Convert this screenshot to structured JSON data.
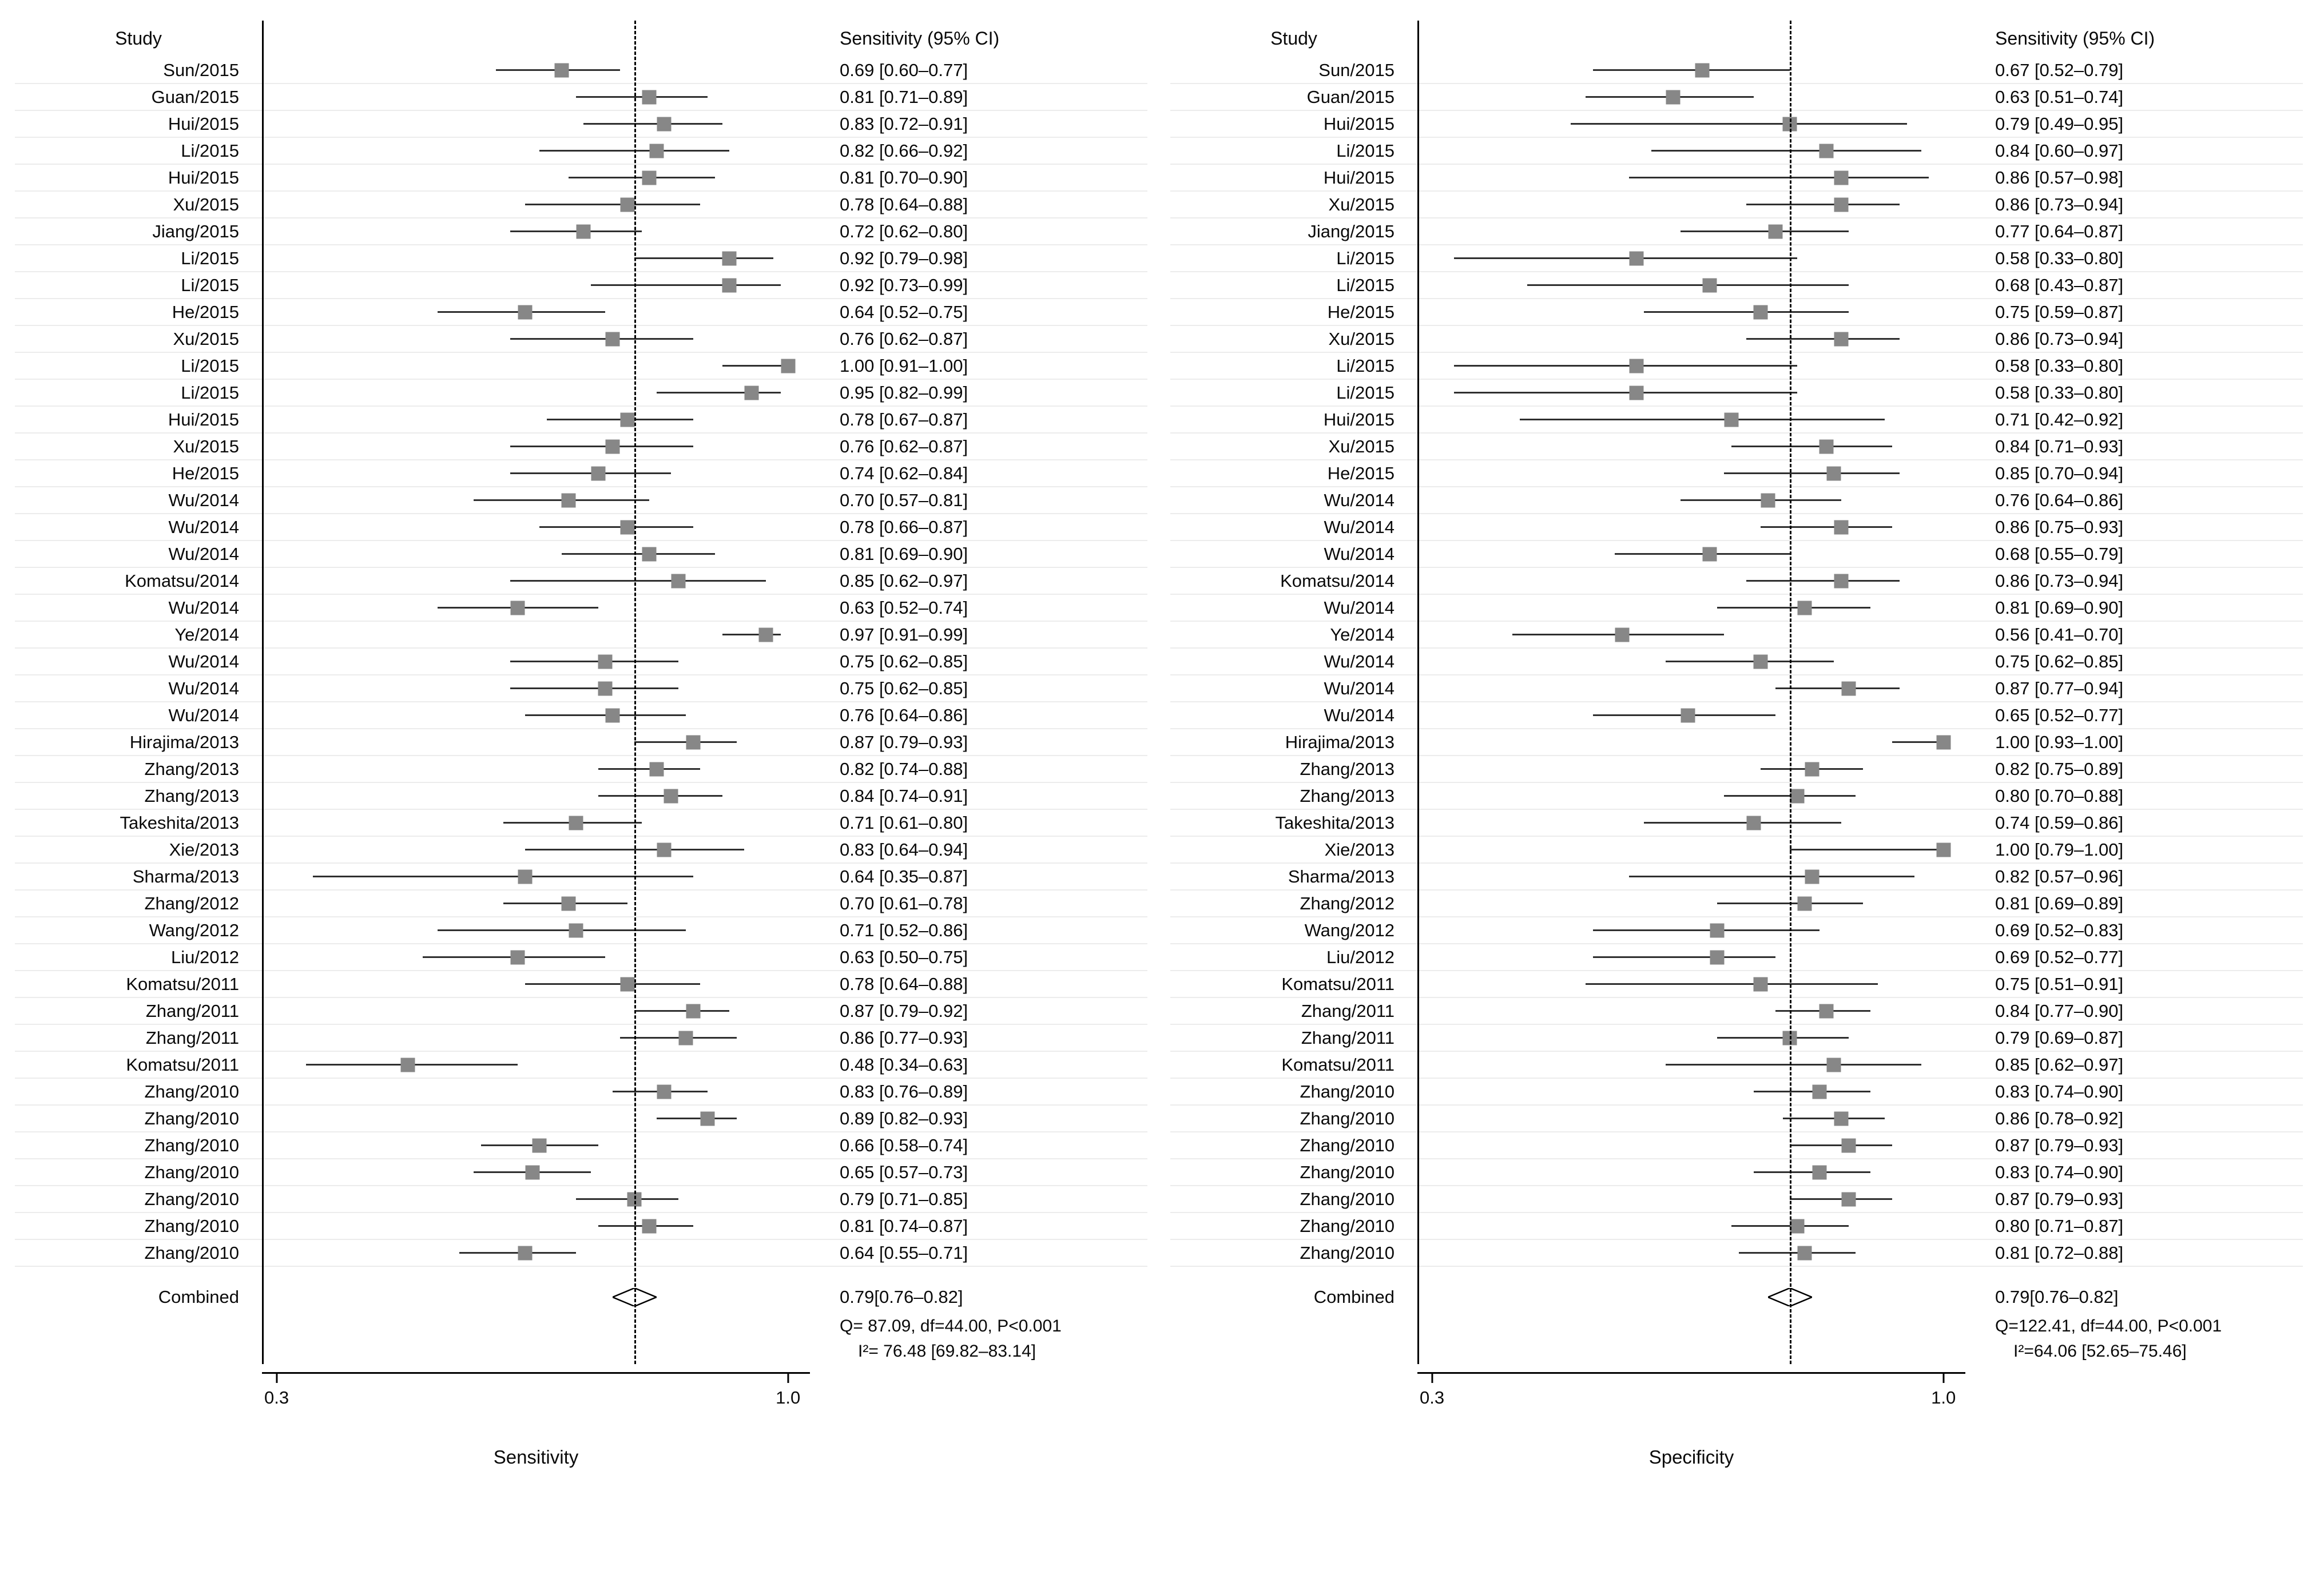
{
  "style": {
    "marker_color": "#878787",
    "ci_line_color": "#2f2f2f",
    "axis_color": "#000000",
    "background": "#ffffff"
  },
  "chart_data": [
    {
      "type": "forest",
      "col_study": "Study",
      "col_ci": "Sensitivity (95% CI)",
      "xlabel": "Sensitivity",
      "x_ticks": [
        "0.3",
        "1.0"
      ],
      "x_range": [
        0.28,
        1.03
      ],
      "grid": "light-horizontal",
      "combined": {
        "label": "Combined",
        "v": 0.79,
        "lo": 0.76,
        "hi": 0.82,
        "text": "0.79[0.76–0.82]"
      },
      "heterogeneity": [
        "Q= 87.09, df=44.00, P<0.001",
        "I²= 76.48 [69.82–83.14]"
      ],
      "rows": [
        {
          "study": "Sun/2015",
          "v": 0.69,
          "lo": 0.6,
          "hi": 0.77,
          "text": "0.69 [0.60–0.77]"
        },
        {
          "study": "Guan/2015",
          "v": 0.81,
          "lo": 0.71,
          "hi": 0.89,
          "text": "0.81 [0.71–0.89]"
        },
        {
          "study": "Hui/2015",
          "v": 0.83,
          "lo": 0.72,
          "hi": 0.91,
          "text": "0.83 [0.72–0.91]"
        },
        {
          "study": "Li/2015",
          "v": 0.82,
          "lo": 0.66,
          "hi": 0.92,
          "text": "0.82 [0.66–0.92]"
        },
        {
          "study": "Hui/2015",
          "v": 0.81,
          "lo": 0.7,
          "hi": 0.9,
          "text": "0.81 [0.70–0.90]"
        },
        {
          "study": "Xu/2015",
          "v": 0.78,
          "lo": 0.64,
          "hi": 0.88,
          "text": "0.78 [0.64–0.88]"
        },
        {
          "study": "Jiang/2015",
          "v": 0.72,
          "lo": 0.62,
          "hi": 0.8,
          "text": "0.72 [0.62–0.80]"
        },
        {
          "study": "Li/2015",
          "v": 0.92,
          "lo": 0.79,
          "hi": 0.98,
          "text": "0.92 [0.79–0.98]"
        },
        {
          "study": "Li/2015",
          "v": 0.92,
          "lo": 0.73,
          "hi": 0.99,
          "text": "0.92 [0.73–0.99]"
        },
        {
          "study": "He/2015",
          "v": 0.64,
          "lo": 0.52,
          "hi": 0.75,
          "text": "0.64 [0.52–0.75]"
        },
        {
          "study": "Xu/2015",
          "v": 0.76,
          "lo": 0.62,
          "hi": 0.87,
          "text": "0.76 [0.62–0.87]"
        },
        {
          "study": "Li/2015",
          "v": 1.0,
          "lo": 0.91,
          "hi": 1.0,
          "text": "1.00 [0.91–1.00]"
        },
        {
          "study": "Li/2015",
          "v": 0.95,
          "lo": 0.82,
          "hi": 0.99,
          "text": "0.95 [0.82–0.99]"
        },
        {
          "study": "Hui/2015",
          "v": 0.78,
          "lo": 0.67,
          "hi": 0.87,
          "text": "0.78 [0.67–0.87]"
        },
        {
          "study": "Xu/2015",
          "v": 0.76,
          "lo": 0.62,
          "hi": 0.87,
          "text": "0.76 [0.62–0.87]"
        },
        {
          "study": "He/2015",
          "v": 0.74,
          "lo": 0.62,
          "hi": 0.84,
          "text": "0.74 [0.62–0.84]"
        },
        {
          "study": "Wu/2014",
          "v": 0.7,
          "lo": 0.57,
          "hi": 0.81,
          "text": "0.70 [0.57–0.81]"
        },
        {
          "study": "Wu/2014",
          "v": 0.78,
          "lo": 0.66,
          "hi": 0.87,
          "text": "0.78 [0.66–0.87]"
        },
        {
          "study": "Wu/2014",
          "v": 0.81,
          "lo": 0.69,
          "hi": 0.9,
          "text": "0.81 [0.69–0.90]"
        },
        {
          "study": "Komatsu/2014",
          "v": 0.85,
          "lo": 0.62,
          "hi": 0.97,
          "text": "0.85 [0.62–0.97]"
        },
        {
          "study": "Wu/2014",
          "v": 0.63,
          "lo": 0.52,
          "hi": 0.74,
          "text": "0.63 [0.52–0.74]"
        },
        {
          "study": "Ye/2014",
          "v": 0.97,
          "lo": 0.91,
          "hi": 0.99,
          "text": "0.97 [0.91–0.99]"
        },
        {
          "study": "Wu/2014",
          "v": 0.75,
          "lo": 0.62,
          "hi": 0.85,
          "text": "0.75 [0.62–0.85]"
        },
        {
          "study": "Wu/2014",
          "v": 0.75,
          "lo": 0.62,
          "hi": 0.85,
          "text": "0.75 [0.62–0.85]"
        },
        {
          "study": "Wu/2014",
          "v": 0.76,
          "lo": 0.64,
          "hi": 0.86,
          "text": "0.76 [0.64–0.86]"
        },
        {
          "study": "Hirajima/2013",
          "v": 0.87,
          "lo": 0.79,
          "hi": 0.93,
          "text": "0.87 [0.79–0.93]"
        },
        {
          "study": "Zhang/2013",
          "v": 0.82,
          "lo": 0.74,
          "hi": 0.88,
          "text": "0.82 [0.74–0.88]"
        },
        {
          "study": "Zhang/2013",
          "v": 0.84,
          "lo": 0.74,
          "hi": 0.91,
          "text": "0.84 [0.74–0.91]"
        },
        {
          "study": "Takeshita/2013",
          "v": 0.71,
          "lo": 0.61,
          "hi": 0.8,
          "text": "0.71 [0.61–0.80]"
        },
        {
          "study": "Xie/2013",
          "v": 0.83,
          "lo": 0.64,
          "hi": 0.94,
          "text": "0.83 [0.64–0.94]"
        },
        {
          "study": "Sharma/2013",
          "v": 0.64,
          "lo": 0.35,
          "hi": 0.87,
          "text": "0.64 [0.35–0.87]"
        },
        {
          "study": "Zhang/2012",
          "v": 0.7,
          "lo": 0.61,
          "hi": 0.78,
          "text": "0.70 [0.61–0.78]"
        },
        {
          "study": "Wang/2012",
          "v": 0.71,
          "lo": 0.52,
          "hi": 0.86,
          "text": "0.71 [0.52–0.86]"
        },
        {
          "study": "Liu/2012",
          "v": 0.63,
          "lo": 0.5,
          "hi": 0.75,
          "text": "0.63 [0.50–0.75]"
        },
        {
          "study": "Komatsu/2011",
          "v": 0.78,
          "lo": 0.64,
          "hi": 0.88,
          "text": "0.78 [0.64–0.88]"
        },
        {
          "study": "Zhang/2011",
          "v": 0.87,
          "lo": 0.79,
          "hi": 0.92,
          "text": "0.87 [0.79–0.92]"
        },
        {
          "study": "Zhang/2011",
          "v": 0.86,
          "lo": 0.77,
          "hi": 0.93,
          "text": "0.86 [0.77–0.93]"
        },
        {
          "study": "Komatsu/2011",
          "v": 0.48,
          "lo": 0.34,
          "hi": 0.63,
          "text": "0.48 [0.34–0.63]"
        },
        {
          "study": "Zhang/2010",
          "v": 0.83,
          "lo": 0.76,
          "hi": 0.89,
          "text": "0.83 [0.76–0.89]"
        },
        {
          "study": "Zhang/2010",
          "v": 0.89,
          "lo": 0.82,
          "hi": 0.93,
          "text": "0.89 [0.82–0.93]"
        },
        {
          "study": "Zhang/2010",
          "v": 0.66,
          "lo": 0.58,
          "hi": 0.74,
          "text": "0.66 [0.58–0.74]"
        },
        {
          "study": "Zhang/2010",
          "v": 0.65,
          "lo": 0.57,
          "hi": 0.73,
          "text": "0.65 [0.57–0.73]"
        },
        {
          "study": "Zhang/2010",
          "v": 0.79,
          "lo": 0.71,
          "hi": 0.85,
          "text": "0.79 [0.71–0.85]"
        },
        {
          "study": "Zhang/2010",
          "v": 0.81,
          "lo": 0.74,
          "hi": 0.87,
          "text": "0.81 [0.74–0.87]"
        },
        {
          "study": "Zhang/2010",
          "v": 0.64,
          "lo": 0.55,
          "hi": 0.71,
          "text": "0.64 [0.55–0.71]"
        }
      ]
    },
    {
      "type": "forest",
      "col_study": "Study",
      "col_ci": "Sensitivity (95% CI)",
      "xlabel": "Specificity",
      "x_ticks": [
        "0.3",
        "1.0"
      ],
      "x_range": [
        0.28,
        1.03
      ],
      "grid": "light-horizontal",
      "combined": {
        "label": "Combined",
        "v": 0.79,
        "lo": 0.76,
        "hi": 0.82,
        "text": "0.79[0.76–0.82]"
      },
      "heterogeneity": [
        "Q=122.41, df=44.00, P<0.001",
        "I²=64.06 [52.65–75.46]"
      ],
      "rows": [
        {
          "study": "Sun/2015",
          "v": 0.67,
          "lo": 0.52,
          "hi": 0.79,
          "text": "0.67 [0.52–0.79]"
        },
        {
          "study": "Guan/2015",
          "v": 0.63,
          "lo": 0.51,
          "hi": 0.74,
          "text": "0.63 [0.51–0.74]"
        },
        {
          "study": "Hui/2015",
          "v": 0.79,
          "lo": 0.49,
          "hi": 0.95,
          "text": "0.79 [0.49–0.95]"
        },
        {
          "study": "Li/2015",
          "v": 0.84,
          "lo": 0.6,
          "hi": 0.97,
          "text": "0.84 [0.60–0.97]"
        },
        {
          "study": "Hui/2015",
          "v": 0.86,
          "lo": 0.57,
          "hi": 0.98,
          "text": "0.86 [0.57–0.98]"
        },
        {
          "study": "Xu/2015",
          "v": 0.86,
          "lo": 0.73,
          "hi": 0.94,
          "text": "0.86 [0.73–0.94]"
        },
        {
          "study": "Jiang/2015",
          "v": 0.77,
          "lo": 0.64,
          "hi": 0.87,
          "text": "0.77 [0.64–0.87]"
        },
        {
          "study": "Li/2015",
          "v": 0.58,
          "lo": 0.33,
          "hi": 0.8,
          "text": "0.58 [0.33–0.80]"
        },
        {
          "study": "Li/2015",
          "v": 0.68,
          "lo": 0.43,
          "hi": 0.87,
          "text": "0.68 [0.43–0.87]"
        },
        {
          "study": "He/2015",
          "v": 0.75,
          "lo": 0.59,
          "hi": 0.87,
          "text": "0.75 [0.59–0.87]"
        },
        {
          "study": "Xu/2015",
          "v": 0.86,
          "lo": 0.73,
          "hi": 0.94,
          "text": "0.86 [0.73–0.94]"
        },
        {
          "study": "Li/2015",
          "v": 0.58,
          "lo": 0.33,
          "hi": 0.8,
          "text": "0.58 [0.33–0.80]"
        },
        {
          "study": "Li/2015",
          "v": 0.58,
          "lo": 0.33,
          "hi": 0.8,
          "text": "0.58 [0.33–0.80]"
        },
        {
          "study": "Hui/2015",
          "v": 0.71,
          "lo": 0.42,
          "hi": 0.92,
          "text": "0.71 [0.42–0.92]"
        },
        {
          "study": "Xu/2015",
          "v": 0.84,
          "lo": 0.71,
          "hi": 0.93,
          "text": "0.84 [0.71–0.93]"
        },
        {
          "study": "He/2015",
          "v": 0.85,
          "lo": 0.7,
          "hi": 0.94,
          "text": "0.85 [0.70–0.94]"
        },
        {
          "study": "Wu/2014",
          "v": 0.76,
          "lo": 0.64,
          "hi": 0.86,
          "text": "0.76 [0.64–0.86]"
        },
        {
          "study": "Wu/2014",
          "v": 0.86,
          "lo": 0.75,
          "hi": 0.93,
          "text": "0.86 [0.75–0.93]"
        },
        {
          "study": "Wu/2014",
          "v": 0.68,
          "lo": 0.55,
          "hi": 0.79,
          "text": "0.68 [0.55–0.79]"
        },
        {
          "study": "Komatsu/2014",
          "v": 0.86,
          "lo": 0.73,
          "hi": 0.94,
          "text": "0.86 [0.73–0.94]"
        },
        {
          "study": "Wu/2014",
          "v": 0.81,
          "lo": 0.69,
          "hi": 0.9,
          "text": "0.81 [0.69–0.90]"
        },
        {
          "study": "Ye/2014",
          "v": 0.56,
          "lo": 0.41,
          "hi": 0.7,
          "text": "0.56 [0.41–0.70]"
        },
        {
          "study": "Wu/2014",
          "v": 0.75,
          "lo": 0.62,
          "hi": 0.85,
          "text": "0.75 [0.62–0.85]"
        },
        {
          "study": "Wu/2014",
          "v": 0.87,
          "lo": 0.77,
          "hi": 0.94,
          "text": "0.87 [0.77–0.94]"
        },
        {
          "study": "Wu/2014",
          "v": 0.65,
          "lo": 0.52,
          "hi": 0.77,
          "text": "0.65 [0.52–0.77]"
        },
        {
          "study": "Hirajima/2013",
          "v": 1.0,
          "lo": 0.93,
          "hi": 1.0,
          "text": "1.00 [0.93–1.00]"
        },
        {
          "study": "Zhang/2013",
          "v": 0.82,
          "lo": 0.75,
          "hi": 0.89,
          "text": "0.82 [0.75–0.89]"
        },
        {
          "study": "Zhang/2013",
          "v": 0.8,
          "lo": 0.7,
          "hi": 0.88,
          "text": "0.80 [0.70–0.88]"
        },
        {
          "study": "Takeshita/2013",
          "v": 0.74,
          "lo": 0.59,
          "hi": 0.86,
          "text": "0.74 [0.59–0.86]"
        },
        {
          "study": "Xie/2013",
          "v": 1.0,
          "lo": 0.79,
          "hi": 1.0,
          "text": "1.00 [0.79–1.00]"
        },
        {
          "study": "Sharma/2013",
          "v": 0.82,
          "lo": 0.57,
          "hi": 0.96,
          "text": "0.82 [0.57–0.96]"
        },
        {
          "study": "Zhang/2012",
          "v": 0.81,
          "lo": 0.69,
          "hi": 0.89,
          "text": "0.81 [0.69–0.89]"
        },
        {
          "study": "Wang/2012",
          "v": 0.69,
          "lo": 0.52,
          "hi": 0.83,
          "text": "0.69 [0.52–0.83]"
        },
        {
          "study": "Liu/2012",
          "v": 0.69,
          "lo": 0.52,
          "hi": 0.77,
          "text": "0.69 [0.52–0.77]"
        },
        {
          "study": "Komatsu/2011",
          "v": 0.75,
          "lo": 0.51,
          "hi": 0.91,
          "text": "0.75 [0.51–0.91]"
        },
        {
          "study": "Zhang/2011",
          "v": 0.84,
          "lo": 0.77,
          "hi": 0.9,
          "text": "0.84 [0.77–0.90]"
        },
        {
          "study": "Zhang/2011",
          "v": 0.79,
          "lo": 0.69,
          "hi": 0.87,
          "text": "0.79 [0.69–0.87]"
        },
        {
          "study": "Komatsu/2011",
          "v": 0.85,
          "lo": 0.62,
          "hi": 0.97,
          "text": "0.85 [0.62–0.97]"
        },
        {
          "study": "Zhang/2010",
          "v": 0.83,
          "lo": 0.74,
          "hi": 0.9,
          "text": "0.83 [0.74–0.90]"
        },
        {
          "study": "Zhang/2010",
          "v": 0.86,
          "lo": 0.78,
          "hi": 0.92,
          "text": "0.86 [0.78–0.92]"
        },
        {
          "study": "Zhang/2010",
          "v": 0.87,
          "lo": 0.79,
          "hi": 0.93,
          "text": "0.87 [0.79–0.93]"
        },
        {
          "study": "Zhang/2010",
          "v": 0.83,
          "lo": 0.74,
          "hi": 0.9,
          "text": "0.83 [0.74–0.90]"
        },
        {
          "study": "Zhang/2010",
          "v": 0.87,
          "lo": 0.79,
          "hi": 0.93,
          "text": "0.87 [0.79–0.93]"
        },
        {
          "study": "Zhang/2010",
          "v": 0.8,
          "lo": 0.71,
          "hi": 0.87,
          "text": "0.80 [0.71–0.87]"
        },
        {
          "study": "Zhang/2010",
          "v": 0.81,
          "lo": 0.72,
          "hi": 0.88,
          "text": "0.81 [0.72–0.88]"
        }
      ]
    }
  ]
}
